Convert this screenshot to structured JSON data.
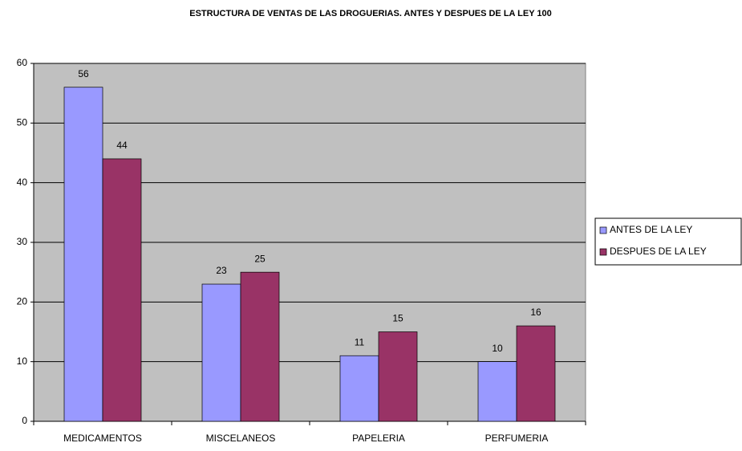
{
  "chart_data": {
    "type": "bar",
    "title": "ESTRUCTURA DE VENTAS DE LAS DROGUERIAS. ANTES Y DESPUES DE LA LEY 100",
    "categories": [
      "MEDICAMENTOS",
      "MISCELANEOS",
      "PAPELERIA",
      "PERFUMERIA"
    ],
    "series": [
      {
        "name": "ANTES DE LA LEY",
        "color": "#9999ff",
        "values": [
          56,
          23,
          11,
          10
        ]
      },
      {
        "name": "DESPUES DE LA LEY",
        "color": "#993366",
        "values": [
          44,
          25,
          15,
          16
        ]
      }
    ],
    "ylim": [
      0,
      60
    ],
    "yticks": [
      0,
      10,
      20,
      30,
      40,
      50,
      60
    ],
    "grid": true,
    "legend": "right"
  }
}
